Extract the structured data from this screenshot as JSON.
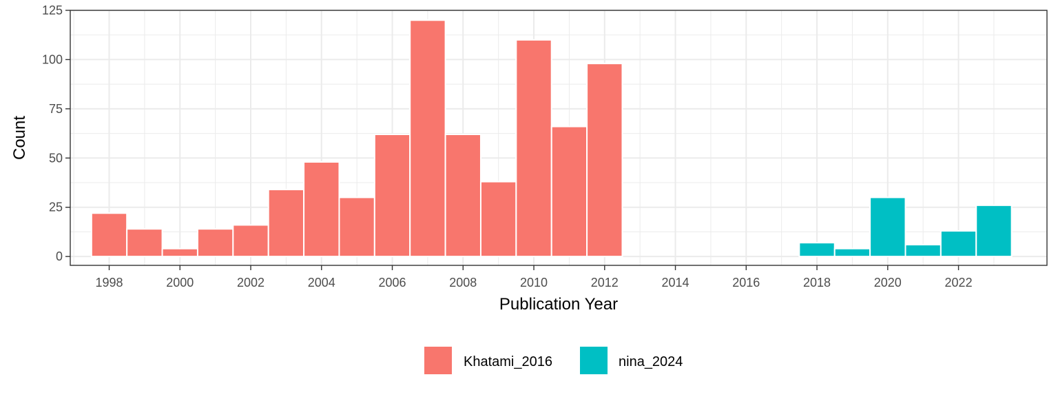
{
  "chart_data": {
    "type": "bar",
    "title": "",
    "xlabel": "Publication Year",
    "ylabel": "Count",
    "xlim": [
      1996.9,
      2024.5
    ],
    "ylim": [
      -4.5,
      125
    ],
    "x_ticks": [
      "1998",
      "2000",
      "2002",
      "2004",
      "2006",
      "2008",
      "2010",
      "2012",
      "2014",
      "2016",
      "2018",
      "2020",
      "2022"
    ],
    "y_ticks": [
      "0",
      "25",
      "50",
      "75",
      "100",
      "125"
    ],
    "grid": true,
    "legend_position": "bottom",
    "series": [
      {
        "name": "Khatami_2016",
        "color": "#F8766D",
        "x": [
          1998,
          1999,
          2000,
          2001,
          2002,
          2003,
          2004,
          2005,
          2006,
          2007,
          2008,
          2009,
          2010,
          2011,
          2012
        ],
        "values": [
          22,
          14,
          4,
          14,
          16,
          34,
          48,
          30,
          62,
          120,
          62,
          38,
          110,
          66,
          98
        ]
      },
      {
        "name": "nina_2024",
        "color": "#00BFC4",
        "x": [
          2018,
          2019,
          2020,
          2021,
          2022,
          2023
        ],
        "values": [
          7,
          4,
          30,
          6,
          13,
          26
        ]
      }
    ]
  }
}
